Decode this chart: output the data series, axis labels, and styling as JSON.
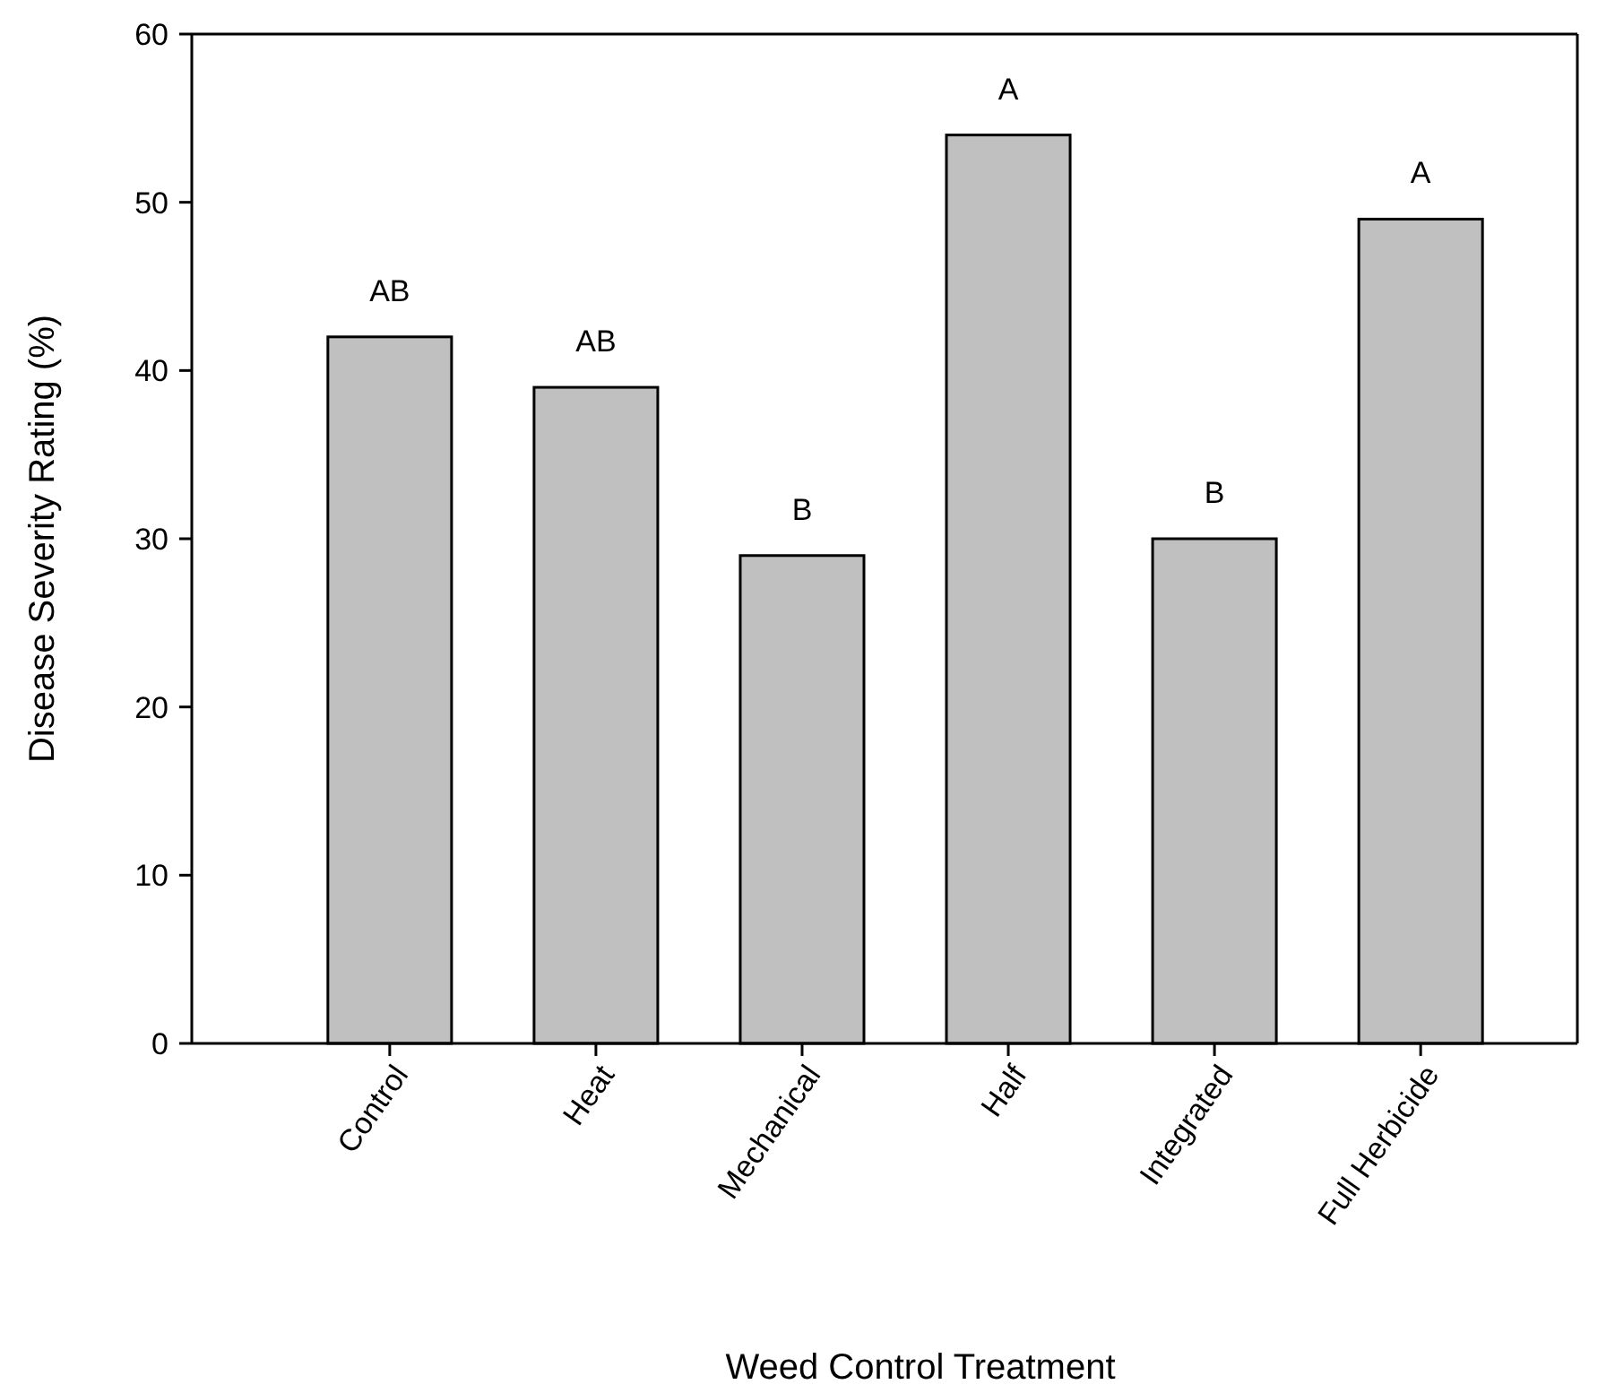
{
  "chart_data": {
    "type": "bar",
    "xlabel": "Weed Control Treatment",
    "ylabel": "Disease Severity Rating (%)",
    "categories": [
      "Control",
      "Heat",
      "Mechanical",
      "Half",
      "Integrated",
      "Full Herbicide"
    ],
    "values": [
      42,
      39,
      29,
      54,
      30,
      49
    ],
    "color": "#c0c0c0",
    "ylim": [
      0,
      60
    ],
    "yticks": [
      0,
      10,
      20,
      30,
      40,
      50,
      60
    ],
    "grid": false,
    "annotations": [
      {
        "text": "AB",
        "x": "Control",
        "y": 42
      },
      {
        "text": "AB",
        "x": "Heat",
        "y": 39
      },
      {
        "text": "B",
        "x": "Mechanical",
        "y": 29
      },
      {
        "text": "A",
        "x": "Half",
        "y": 54
      },
      {
        "text": "B",
        "x": "Integrated",
        "y": 30
      },
      {
        "text": "A",
        "x": "Full Herbicide",
        "y": 49
      }
    ]
  }
}
